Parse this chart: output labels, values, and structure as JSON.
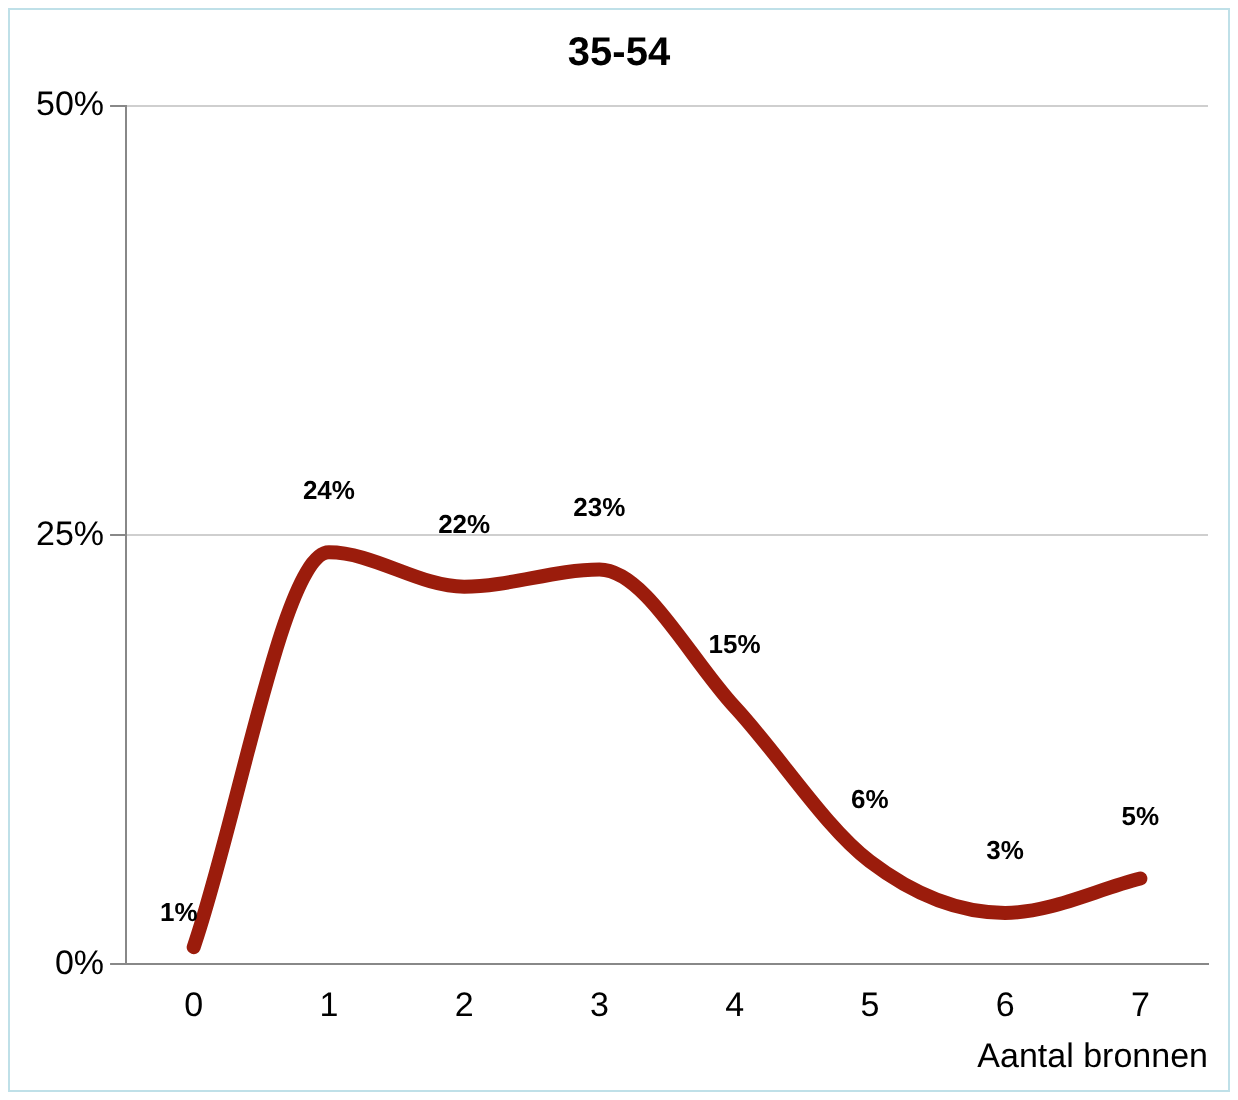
{
  "chart_data": {
    "type": "line",
    "title": "35-54",
    "xlabel": "Aantal bronnen",
    "categories": [
      "0",
      "1",
      "2",
      "3",
      "4",
      "5",
      "6",
      "7"
    ],
    "series": [
      {
        "color": "#9b1c0c",
        "values": [
          1,
          24,
          22,
          23,
          15,
          6,
          3,
          5
        ]
      }
    ],
    "ylim": [
      0,
      50
    ],
    "yticks": [
      {
        "value": 0,
        "label": "0%"
      },
      {
        "value": 25,
        "label": "25%"
      },
      {
        "value": 50,
        "label": "50%"
      }
    ],
    "value_labels": [
      "1%",
      "24%",
      "22%",
      "23%",
      "15%",
      "6%",
      "3%",
      "5%"
    ],
    "grid": "y",
    "legend": false,
    "marker": "none",
    "line_style": "solid"
  }
}
